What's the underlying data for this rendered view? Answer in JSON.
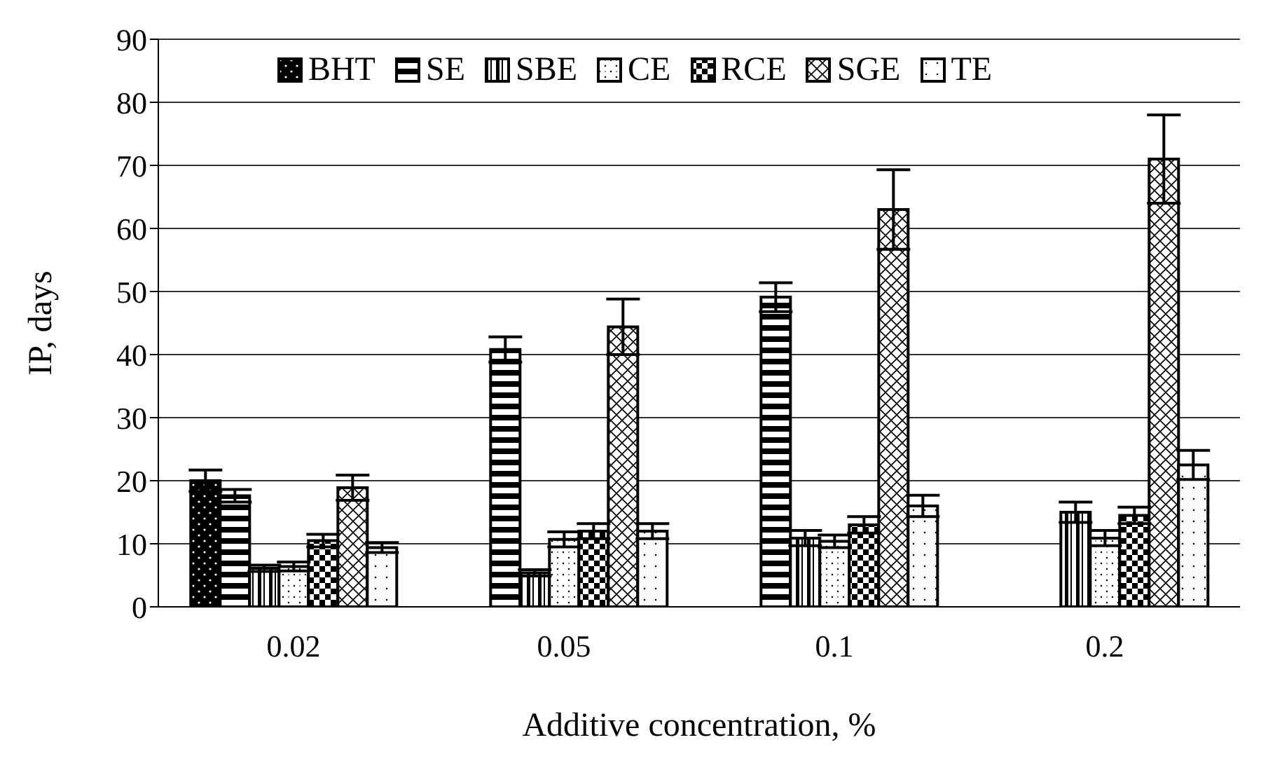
{
  "chart_data": {
    "type": "bar",
    "xlabel": "Additive concentration, %",
    "ylabel": "IP, days",
    "categories": [
      "0.02",
      "0.05",
      "0.1",
      "0.2"
    ],
    "series": [
      {
        "name": "BHT",
        "color": "#000000",
        "values": [
          20,
          null,
          null,
          null
        ],
        "errors": [
          1.7,
          null,
          null,
          null
        ]
      },
      {
        "name": "SE",
        "color": "#000000",
        "values": [
          17.6,
          40.8,
          49.1,
          null
        ],
        "errors": [
          1,
          2,
          2.3,
          null
        ]
      },
      {
        "name": "SBE",
        "color": "#000000",
        "values": [
          6.1,
          5.4,
          10.9,
          15
        ],
        "errors": [
          0.5,
          0.5,
          1.2,
          1.6
        ]
      },
      {
        "name": "CE",
        "color": "#000000",
        "values": [
          6.4,
          10.7,
          10.4,
          10.9
        ],
        "errors": [
          0.7,
          1.2,
          1,
          1.2
        ]
      },
      {
        "name": "RCE",
        "color": "#000000",
        "values": [
          10.5,
          12,
          13,
          14.5
        ],
        "errors": [
          1,
          1.2,
          1.3,
          1.3
        ]
      },
      {
        "name": "SGE",
        "color": "#000000",
        "values": [
          18.9,
          44.4,
          63,
          71
        ],
        "errors": [
          2,
          4.4,
          6.3,
          7
        ]
      },
      {
        "name": "TE",
        "color": "#000000",
        "values": [
          9.4,
          12,
          16,
          22.5
        ],
        "errors": [
          0.8,
          1.2,
          1.7,
          2.3
        ]
      }
    ],
    "ylim": [
      0,
      90
    ],
    "yticks": [
      0,
      10,
      20,
      30,
      40,
      50,
      60,
      70,
      80,
      90
    ],
    "grid": "y",
    "legend": "top"
  }
}
